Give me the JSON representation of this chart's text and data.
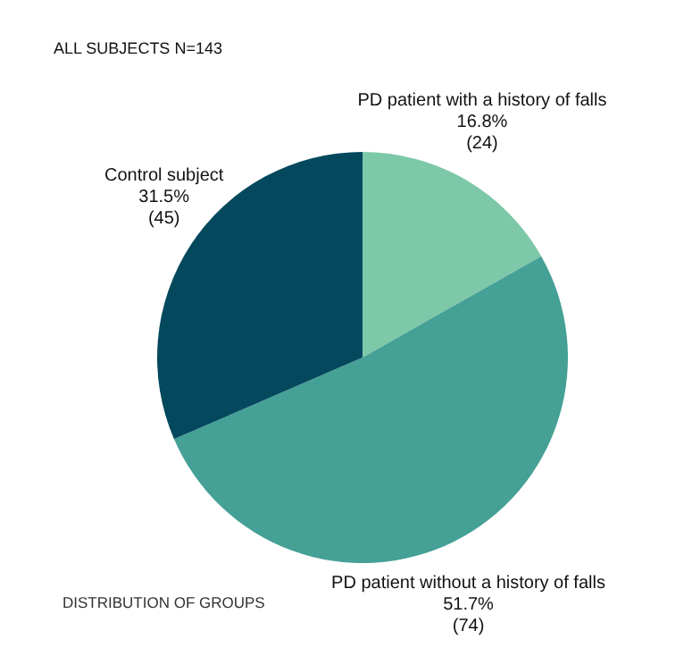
{
  "chart_data": {
    "type": "pie",
    "title": "ALL SUBJECTS N=143",
    "categories": [
      "PD patient with a history of falls",
      "PD patient without a history of falls",
      "Control subject"
    ],
    "values": [
      16.8,
      51.7,
      31.5
    ],
    "colors": [
      "#7dc8a8",
      "#45a096",
      "#03485d"
    ],
    "value_labels": [
      "16.8%",
      "51.7%",
      "31.5%"
    ],
    "annotations": [
      {
        "text": "(24)",
        "x": "PD patient with a history of falls"
      },
      {
        "text": "(74)",
        "x": "PD patient without a history of falls"
      },
      {
        "text": "(45)",
        "x": "Control subject"
      },
      "DISTRIBUTION OF GROUPS"
    ]
  }
}
